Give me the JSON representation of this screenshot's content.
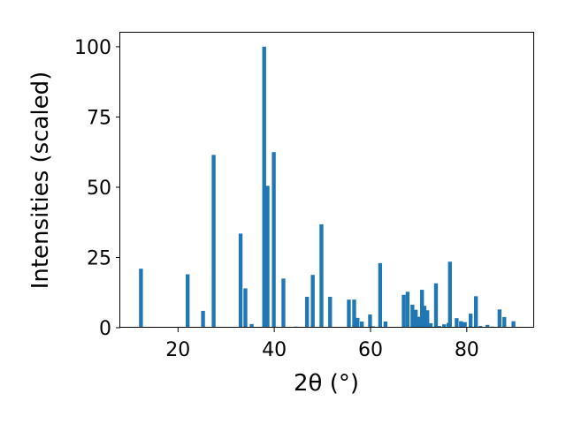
{
  "chart_data": {
    "type": "bar",
    "title": "",
    "xlabel": "2θ (°)",
    "ylabel": "Intensities (scaled)",
    "xlim": [
      8,
      94
    ],
    "ylim": [
      0,
      105
    ],
    "xticks": [
      20,
      40,
      60,
      80
    ],
    "yticks": [
      0,
      25,
      50,
      75,
      100
    ],
    "grid": false,
    "bar_color": "#1f77b4",
    "bar_width": 0.8,
    "x": [
      12.3,
      22.0,
      25.2,
      27.4,
      33.0,
      34.0,
      35.3,
      37.9,
      38.6,
      39.9,
      41.9,
      44.5,
      46.8,
      48.0,
      49.8,
      51.6,
      55.5,
      56.6,
      57.3,
      58.2,
      59.9,
      60.5,
      62.0,
      63.1,
      66.9,
      67.7,
      68.7,
      69.4,
      70.1,
      70.7,
      71.2,
      71.8,
      72.5,
      73.6,
      74.3,
      75.3,
      76.2,
      76.5,
      77.9,
      78.8,
      79.6,
      80.8,
      81.9,
      82.8,
      84.3,
      85.3,
      86.8,
      87.8,
      89.7
    ],
    "values": [
      21,
      19,
      6,
      61.5,
      33.5,
      14,
      1.3,
      100,
      50.5,
      62.5,
      17.5,
      0.4,
      11,
      18.8,
      36.8,
      11,
      10,
      10,
      3.5,
      2.2,
      4.7,
      0.5,
      23,
      2.2,
      11.7,
      12.8,
      8.2,
      6.4,
      3.9,
      13.5,
      7.8,
      6.2,
      1.6,
      15.8,
      0.6,
      1.2,
      1.7,
      23.5,
      3.4,
      2.3,
      2.0,
      5.0,
      11.2,
      0.6,
      1.0,
      0.4,
      6.5,
      3.8,
      2.3
    ]
  }
}
